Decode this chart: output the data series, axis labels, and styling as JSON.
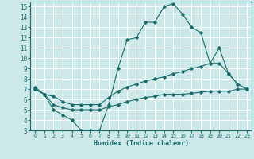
{
  "xlabel": "Humidex (Indice chaleur)",
  "background_color": "#cce8e8",
  "line_color": "#1a6b6b",
  "grid_color": "#ffffff",
  "xlim": [
    -0.5,
    23.5
  ],
  "ylim": [
    3,
    15.5
  ],
  "xticks": [
    0,
    1,
    2,
    3,
    4,
    5,
    6,
    7,
    8,
    9,
    10,
    11,
    12,
    13,
    14,
    15,
    16,
    17,
    18,
    19,
    20,
    21,
    22,
    23
  ],
  "yticks": [
    3,
    4,
    5,
    6,
    7,
    8,
    9,
    10,
    11,
    12,
    13,
    14,
    15
  ],
  "line1_x": [
    0,
    1,
    2,
    3,
    4,
    5,
    6,
    7,
    8,
    9,
    10,
    11,
    12,
    13,
    14,
    15,
    16,
    17,
    18,
    19,
    20,
    21,
    22,
    23
  ],
  "line1_y": [
    7.0,
    6.5,
    5.0,
    4.5,
    4.0,
    3.0,
    3.0,
    3.0,
    5.5,
    9.0,
    11.8,
    12.0,
    13.5,
    13.5,
    15.0,
    15.3,
    14.3,
    13.0,
    12.5,
    9.5,
    11.0,
    8.5,
    7.5,
    7.0
  ],
  "line2_x": [
    0,
    1,
    2,
    3,
    4,
    5,
    6,
    7,
    8,
    9,
    10,
    11,
    12,
    13,
    14,
    15,
    16,
    17,
    18,
    19,
    20,
    21,
    22,
    23
  ],
  "line2_y": [
    7.2,
    6.5,
    6.3,
    5.8,
    5.5,
    5.5,
    5.5,
    5.5,
    6.2,
    6.8,
    7.2,
    7.5,
    7.8,
    8.0,
    8.2,
    8.5,
    8.7,
    9.0,
    9.2,
    9.5,
    9.5,
    8.5,
    7.5,
    7.0
  ],
  "line3_x": [
    0,
    1,
    2,
    3,
    4,
    5,
    6,
    7,
    8,
    9,
    10,
    11,
    12,
    13,
    14,
    15,
    16,
    17,
    18,
    19,
    20,
    21,
    22,
    23
  ],
  "line3_y": [
    7.0,
    6.5,
    5.5,
    5.2,
    5.0,
    5.0,
    5.0,
    5.0,
    5.3,
    5.5,
    5.8,
    6.0,
    6.2,
    6.3,
    6.5,
    6.5,
    6.5,
    6.6,
    6.7,
    6.8,
    6.8,
    6.8,
    7.0,
    7.0
  ]
}
